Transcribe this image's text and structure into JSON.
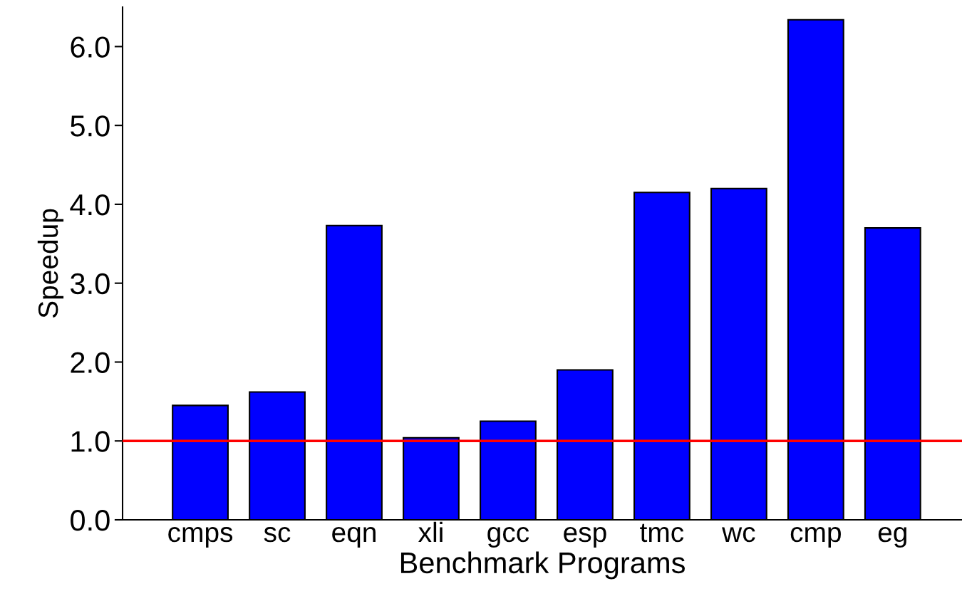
{
  "chart_data": {
    "type": "bar",
    "xlabel": "Benchmark Programs",
    "ylabel": "Speedup",
    "categories": [
      "cmps",
      "sc",
      "eqn",
      "xli",
      "gcc",
      "esp",
      "tmc",
      "wc",
      "cmp",
      "eg"
    ],
    "values": [
      1.45,
      1.62,
      3.73,
      1.04,
      1.25,
      1.9,
      4.15,
      4.2,
      6.34,
      3.7
    ],
    "color": "#0000ff",
    "ylim": [
      0,
      6.5
    ],
    "yticks": [
      {
        "value": 0,
        "label": "0.0"
      },
      {
        "value": 1,
        "label": "1.0"
      },
      {
        "value": 2,
        "label": "2.0"
      },
      {
        "value": 3,
        "label": "3.0"
      },
      {
        "value": 4,
        "label": "4.0"
      },
      {
        "value": 5,
        "label": "5.0"
      },
      {
        "value": 6,
        "label": "6.0"
      }
    ],
    "ref_lines": [
      {
        "axis": "y",
        "value": 1,
        "color": "#ff0000"
      }
    ],
    "grid": false
  }
}
